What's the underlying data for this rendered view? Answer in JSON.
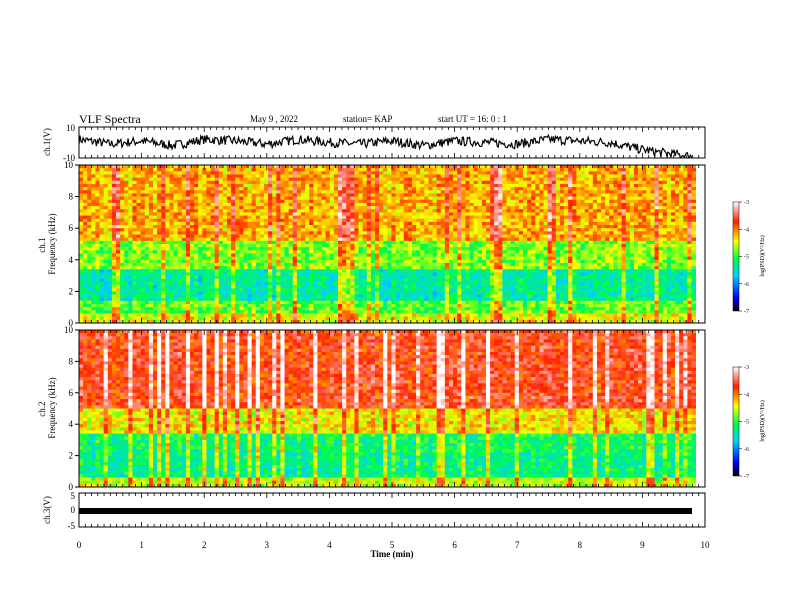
{
  "header": {
    "title": "VLF Spectra",
    "date": "May 9  , 2022",
    "station": "station= KAP",
    "start": "start  UT  =   16: 0  : 1"
  },
  "colors": {
    "spectrum_high": "#ff2020",
    "spectrum_mid": "#ffff00",
    "spectrum_low": "#00ff66",
    "trace": "#000000"
  },
  "chart_data": [
    {
      "type": "line",
      "panel": "ch1-time-series",
      "ylabel": "ch.1(V)",
      "ylim": [
        -10,
        10
      ],
      "yticks": [
        "10",
        "-10"
      ],
      "x": [
        0,
        0.5,
        1,
        1.5,
        2,
        2.5,
        3,
        3.5,
        4,
        4.5,
        5,
        5.5,
        6,
        6.5,
        7,
        7.5,
        8,
        8.5,
        8.8,
        9.2,
        9.6,
        9.8
      ],
      "values": [
        2,
        -1,
        1,
        -2,
        2,
        1,
        -1,
        2,
        0,
        -1,
        1,
        -2,
        1,
        0,
        -1,
        2,
        1,
        0,
        -3,
        -6,
        -8,
        -9
      ]
    },
    {
      "type": "heatmap",
      "panel": "ch1-spectrogram",
      "ylabel": "ch.1\nFrequency  (kHz)",
      "ylim": [
        0,
        10
      ],
      "yticks": [
        "0",
        "2",
        "4",
        "6",
        "8",
        "10"
      ],
      "xlim": [
        0,
        9.85
      ],
      "bands": [
        {
          "from": 0,
          "to": 0.6,
          "level": -4.5
        },
        {
          "from": 0.6,
          "to": 1.5,
          "level": -4.9
        },
        {
          "from": 1.5,
          "to": 3.5,
          "level": -5.4
        },
        {
          "from": 3.5,
          "to": 5.2,
          "level": -4.8
        },
        {
          "from": 5.2,
          "to": 10,
          "level": -4.2
        }
      ],
      "colorbar": {
        "label": "log(PSD)(V²/Hz)",
        "ticks": [
          "-3",
          "-4",
          "-5",
          "-6",
          "-7"
        ],
        "range": [
          -7,
          -3
        ]
      }
    },
    {
      "type": "heatmap",
      "panel": "ch2-spectrogram",
      "ylabel": "ch.2\nFrequency  (kHz)",
      "ylim": [
        0,
        10
      ],
      "yticks": [
        "0",
        "2",
        "4",
        "6",
        "8",
        "10"
      ],
      "xlim": [
        0,
        9.85
      ],
      "bands": [
        {
          "from": 0,
          "to": 0.6,
          "level": -4.6
        },
        {
          "from": 0.6,
          "to": 2.2,
          "level": -5.3
        },
        {
          "from": 2.2,
          "to": 3.5,
          "level": -5.2
        },
        {
          "from": 3.5,
          "to": 5.0,
          "level": -4.4
        },
        {
          "from": 5.0,
          "to": 10,
          "level": -3.7
        }
      ],
      "colorbar": {
        "label": "log(PSD)(V²/Hz)",
        "ticks": [
          "-3",
          "-4",
          "-5",
          "-6",
          "-7"
        ],
        "range": [
          -7,
          -3
        ]
      }
    },
    {
      "type": "line",
      "panel": "ch3-time-series",
      "ylabel": "ch.3(V)",
      "ylim": [
        -5,
        5
      ],
      "yticks": [
        "5",
        "0",
        "-5"
      ],
      "level": 0
    }
  ],
  "xaxis": {
    "label": "Time  (min)",
    "xlim": [
      0,
      10
    ],
    "ticks": [
      "0",
      "1",
      "2",
      "3",
      "4",
      "5",
      "6",
      "7",
      "8",
      "9",
      "10"
    ]
  }
}
